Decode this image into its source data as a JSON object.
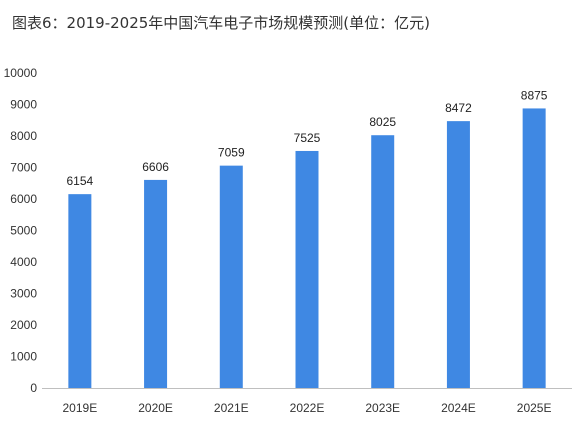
{
  "chart_data": {
    "type": "bar",
    "title": "图表6：2019-2025年中国汽车电子市场规模预测(单位：亿元)",
    "categories": [
      "2019E",
      "2020E",
      "2021E",
      "2022E",
      "2023E",
      "2024E",
      "2025E"
    ],
    "values": [
      6154,
      6606,
      7059,
      7525,
      8025,
      8472,
      8875
    ],
    "data_labels": [
      "6154",
      "6606",
      "7059",
      "7525",
      "8025",
      "8472",
      "8875"
    ],
    "y_ticks": [
      "0",
      "1000",
      "2000",
      "3000",
      "4000",
      "5000",
      "6000",
      "7000",
      "8000",
      "9000",
      "10000"
    ],
    "ylim": [
      0,
      10000
    ],
    "grid": false,
    "legend": "none",
    "bar_color": "#3f88e3",
    "axis_color": "#bfbfbf"
  }
}
